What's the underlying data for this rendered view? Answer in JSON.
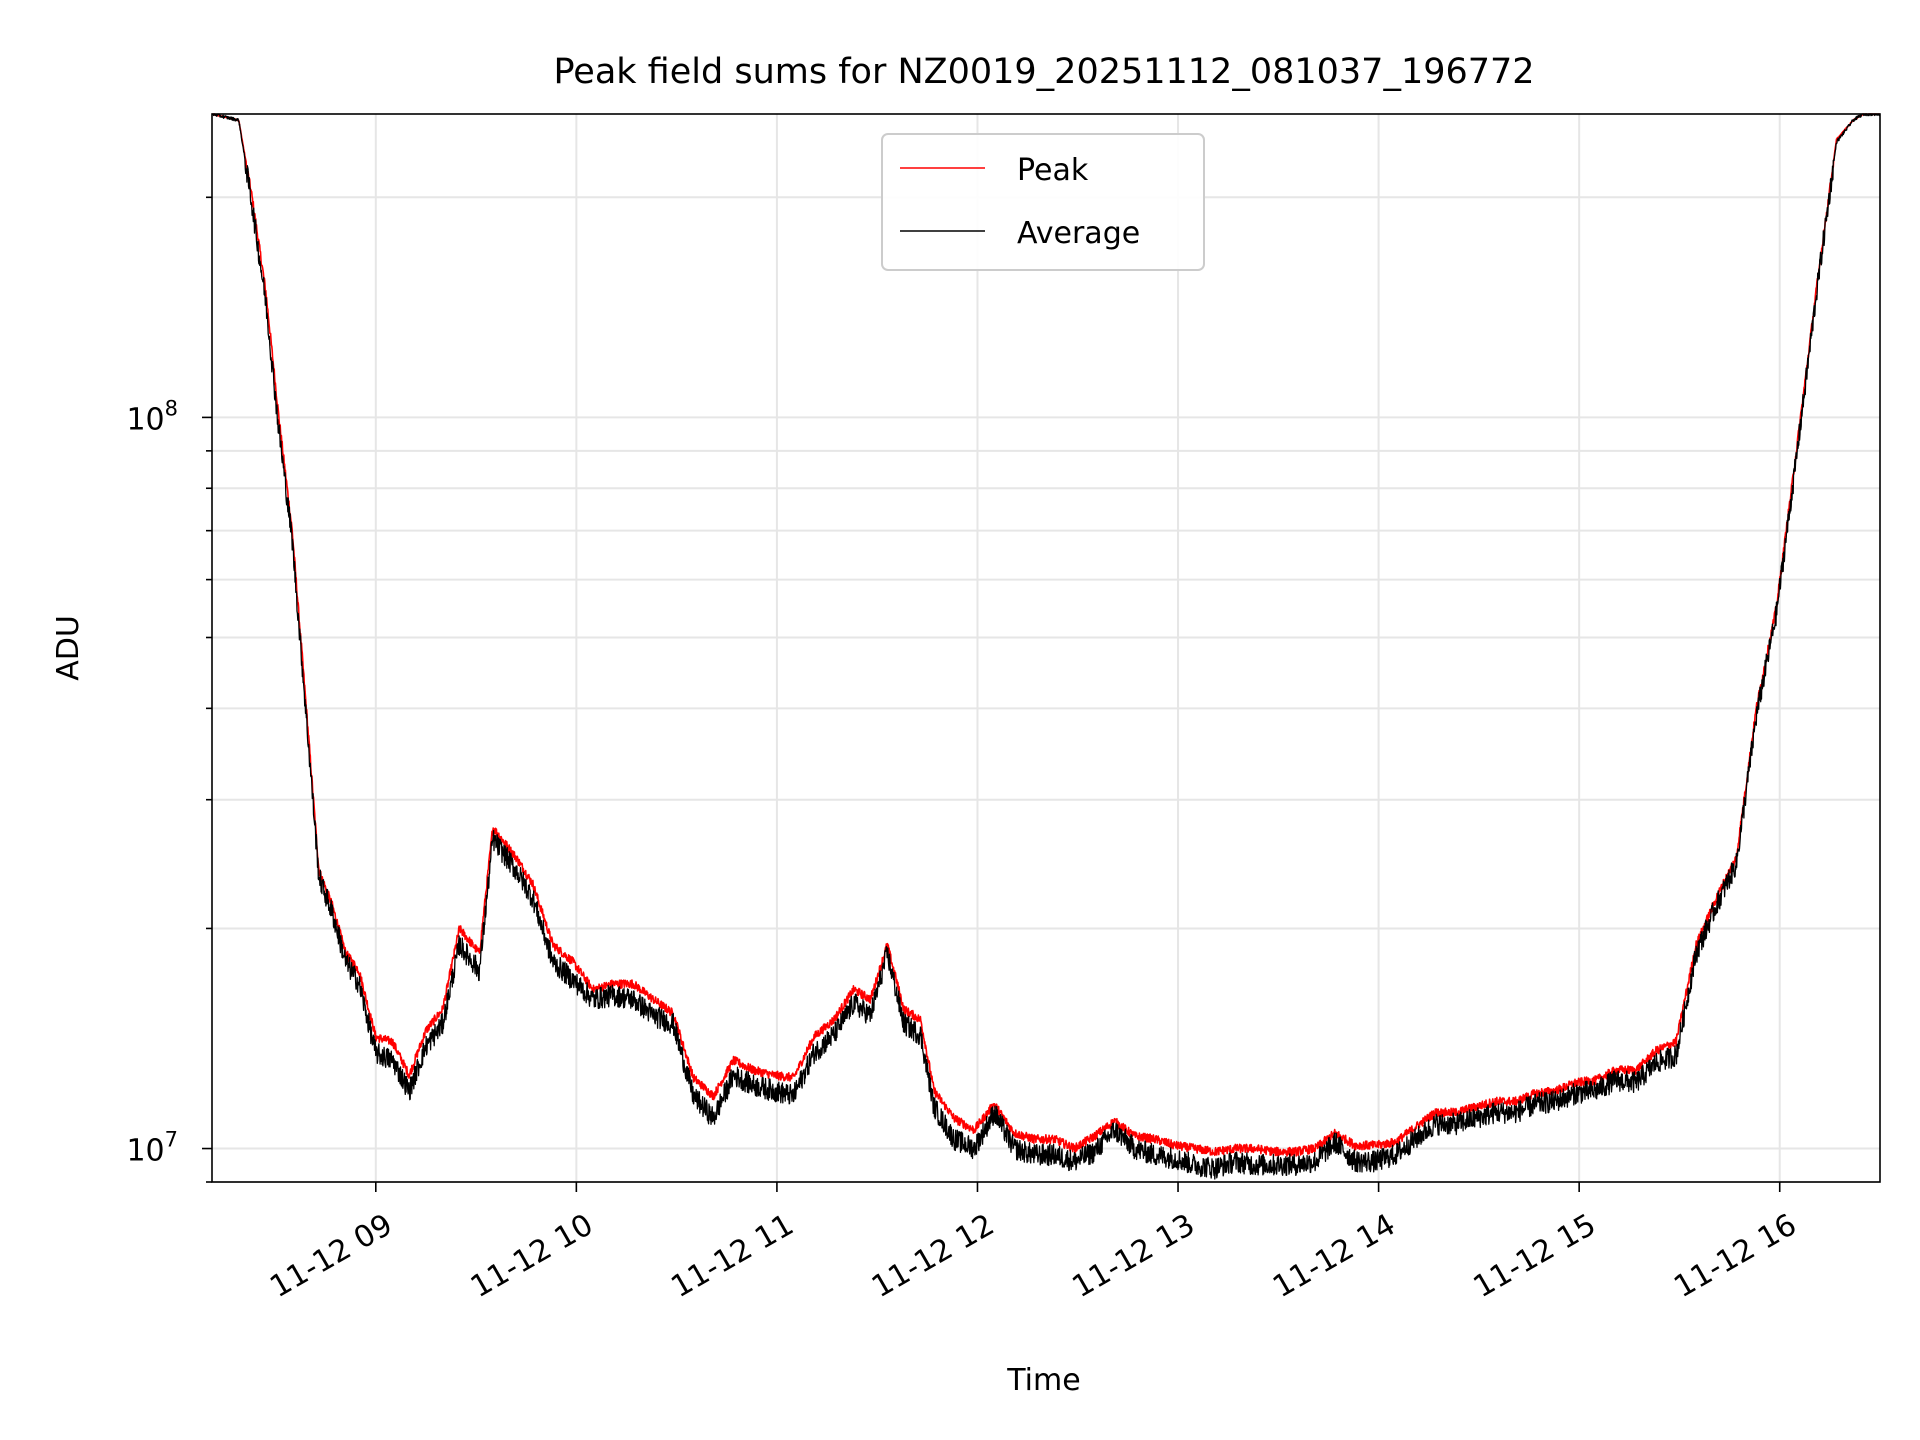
{
  "chart_data": {
    "type": "line",
    "title": "Peak field sums for NZ0019_20251112_081037_196772",
    "xlabel": "Time",
    "ylabel": "ADU",
    "x_range": [
      "2025-11-12 08:11",
      "2025-11-12 16:30"
    ],
    "y_range": [
      9000000,
      260000000
    ],
    "yscale": "log",
    "grid": true,
    "legend_position": "upper center",
    "x_ticks": [
      {
        "x": "2025-11-12 09:00",
        "label": "11-12 09"
      },
      {
        "x": "2025-11-12 10:00",
        "label": "11-12 10"
      },
      {
        "x": "2025-11-12 11:00",
        "label": "11-12 11"
      },
      {
        "x": "2025-11-12 12:00",
        "label": "11-12 12"
      },
      {
        "x": "2025-11-12 13:00",
        "label": "11-12 13"
      },
      {
        "x": "2025-11-12 14:00",
        "label": "11-12 14"
      },
      {
        "x": "2025-11-12 15:00",
        "label": "11-12 15"
      },
      {
        "x": "2025-11-12 16:00",
        "label": "11-12 16"
      }
    ],
    "y_ticks": [
      {
        "y": 10000000,
        "base": "10",
        "exp": "7"
      },
      {
        "y": 100000000,
        "base": "10",
        "exp": "8"
      }
    ],
    "series": [
      {
        "name": "Peak",
        "color": "#ff0000",
        "x": [
          "2025-11-12 08:11",
          "2025-11-12 08:19",
          "2025-11-12 08:23",
          "2025-11-12 08:27",
          "2025-11-12 08:31",
          "2025-11-12 08:35",
          "2025-11-12 08:40",
          "2025-11-12 08:43",
          "2025-11-12 08:47",
          "2025-11-12 08:51",
          "2025-11-12 08:55",
          "2025-11-12 09:00",
          "2025-11-12 09:05",
          "2025-11-12 09:10",
          "2025-11-12 09:15",
          "2025-11-12 09:20",
          "2025-11-12 09:25",
          "2025-11-12 09:31",
          "2025-11-12 09:35",
          "2025-11-12 09:42",
          "2025-11-12 09:47",
          "2025-11-12 09:53",
          "2025-11-12 09:59",
          "2025-11-12 10:05",
          "2025-11-12 10:11",
          "2025-11-12 10:17",
          "2025-11-12 10:23",
          "2025-11-12 10:29",
          "2025-11-12 10:35",
          "2025-11-12 10:41",
          "2025-11-12 10:47",
          "2025-11-12 10:53",
          "2025-11-12 10:59",
          "2025-11-12 11:05",
          "2025-11-12 11:11",
          "2025-11-12 11:17",
          "2025-11-12 11:23",
          "2025-11-12 11:28",
          "2025-11-12 11:33",
          "2025-11-12 11:38",
          "2025-11-12 11:43",
          "2025-11-12 11:47",
          "2025-11-12 11:53",
          "2025-11-12 11:59",
          "2025-11-12 12:05",
          "2025-11-12 12:11",
          "2025-11-12 12:17",
          "2025-11-12 12:23",
          "2025-11-12 12:29",
          "2025-11-12 12:35",
          "2025-11-12 12:41",
          "2025-11-12 12:47",
          "2025-11-12 12:53",
          "2025-11-12 12:59",
          "2025-11-12 13:05",
          "2025-11-12 13:11",
          "2025-11-12 13:17",
          "2025-11-12 13:23",
          "2025-11-12 13:29",
          "2025-11-12 13:35",
          "2025-11-12 13:41",
          "2025-11-12 13:47",
          "2025-11-12 13:53",
          "2025-11-12 13:59",
          "2025-11-12 14:05",
          "2025-11-12 14:11",
          "2025-11-12 14:17",
          "2025-11-12 14:23",
          "2025-11-12 14:29",
          "2025-11-12 14:35",
          "2025-11-12 14:41",
          "2025-11-12 14:47",
          "2025-11-12 14:53",
          "2025-11-12 14:59",
          "2025-11-12 15:05",
          "2025-11-12 15:11",
          "2025-11-12 15:17",
          "2025-11-12 15:23",
          "2025-11-12 15:29",
          "2025-11-12 15:35",
          "2025-11-12 15:41",
          "2025-11-12 15:47",
          "2025-11-12 15:53",
          "2025-11-12 15:59",
          "2025-11-12 16:05",
          "2025-11-12 16:11",
          "2025-11-12 16:17",
          "2025-11-12 16:22",
          "2025-11-12 16:25",
          "2025-11-12 16:30"
        ],
        "values": [
          260000000,
          255000000,
          200000000,
          150000000,
          100000000,
          70000000,
          36000000,
          24000000,
          21500000,
          18500000,
          17500000,
          14200000,
          14000000,
          12600000,
          14500000,
          15500000,
          20000000,
          18500000,
          27500000,
          25000000,
          23000000,
          19000000,
          18000000,
          16500000,
          16800000,
          16800000,
          16000000,
          15300000,
          12500000,
          11800000,
          13200000,
          12800000,
          12600000,
          12500000,
          14200000,
          15000000,
          16500000,
          16000000,
          19000000,
          15500000,
          15000000,
          12000000,
          11000000,
          10600000,
          11500000,
          10500000,
          10300000,
          10300000,
          10000000,
          10400000,
          10900000,
          10400000,
          10300000,
          10100000,
          10000000,
          9900000,
          10000000,
          10000000,
          9900000,
          9900000,
          10000000,
          10500000,
          10100000,
          10100000,
          10200000,
          10700000,
          11200000,
          11200000,
          11400000,
          11600000,
          11600000,
          11900000,
          12000000,
          12300000,
          12400000,
          12800000,
          12800000,
          13600000,
          14000000,
          19000000,
          22000000,
          25000000,
          40000000,
          55000000,
          90000000,
          150000000,
          240000000,
          255000000,
          260000000,
          260000000
        ]
      },
      {
        "name": "Average",
        "color": "#000000",
        "x": [
          "2025-11-12 08:11",
          "2025-11-12 08:19",
          "2025-11-12 08:23",
          "2025-11-12 08:27",
          "2025-11-12 08:31",
          "2025-11-12 08:35",
          "2025-11-12 08:40",
          "2025-11-12 08:43",
          "2025-11-12 08:47",
          "2025-11-12 08:51",
          "2025-11-12 08:55",
          "2025-11-12 09:00",
          "2025-11-12 09:05",
          "2025-11-12 09:10",
          "2025-11-12 09:15",
          "2025-11-12 09:20",
          "2025-11-12 09:25",
          "2025-11-12 09:31",
          "2025-11-12 09:35",
          "2025-11-12 09:42",
          "2025-11-12 09:47",
          "2025-11-12 09:53",
          "2025-11-12 09:59",
          "2025-11-12 10:05",
          "2025-11-12 10:11",
          "2025-11-12 10:17",
          "2025-11-12 10:23",
          "2025-11-12 10:29",
          "2025-11-12 10:35",
          "2025-11-12 10:41",
          "2025-11-12 10:47",
          "2025-11-12 10:53",
          "2025-11-12 10:59",
          "2025-11-12 11:05",
          "2025-11-12 11:11",
          "2025-11-12 11:17",
          "2025-11-12 11:23",
          "2025-11-12 11:28",
          "2025-11-12 11:33",
          "2025-11-12 11:38",
          "2025-11-12 11:43",
          "2025-11-12 11:47",
          "2025-11-12 11:53",
          "2025-11-12 11:59",
          "2025-11-12 12:05",
          "2025-11-12 12:11",
          "2025-11-12 12:17",
          "2025-11-12 12:23",
          "2025-11-12 12:29",
          "2025-11-12 12:35",
          "2025-11-12 12:41",
          "2025-11-12 12:47",
          "2025-11-12 12:53",
          "2025-11-12 12:59",
          "2025-11-12 13:05",
          "2025-11-12 13:11",
          "2025-11-12 13:17",
          "2025-11-12 13:23",
          "2025-11-12 13:29",
          "2025-11-12 13:35",
          "2025-11-12 13:41",
          "2025-11-12 13:47",
          "2025-11-12 13:53",
          "2025-11-12 13:59",
          "2025-11-12 14:05",
          "2025-11-12 14:11",
          "2025-11-12 14:17",
          "2025-11-12 14:23",
          "2025-11-12 14:29",
          "2025-11-12 14:35",
          "2025-11-12 14:41",
          "2025-11-12 14:47",
          "2025-11-12 14:53",
          "2025-11-12 14:59",
          "2025-11-12 15:05",
          "2025-11-12 15:11",
          "2025-11-12 15:17",
          "2025-11-12 15:23",
          "2025-11-12 15:29",
          "2025-11-12 15:35",
          "2025-11-12 15:41",
          "2025-11-12 15:47",
          "2025-11-12 15:53",
          "2025-11-12 15:59",
          "2025-11-12 16:05",
          "2025-11-12 16:11",
          "2025-11-12 16:17",
          "2025-11-12 16:22",
          "2025-11-12 16:25",
          "2025-11-12 16:30"
        ],
        "values": [
          260000000,
          255000000,
          195000000,
          145000000,
          96000000,
          68000000,
          35000000,
          23500000,
          21000000,
          18000000,
          16800000,
          13500000,
          13200000,
          12000000,
          13800000,
          14800000,
          19000000,
          17500000,
          26500000,
          24000000,
          22000000,
          18000000,
          17000000,
          16000000,
          16200000,
          16000000,
          15200000,
          14800000,
          11800000,
          11000000,
          12600000,
          12200000,
          12000000,
          11800000,
          13500000,
          14300000,
          15800000,
          15200000,
          18500000,
          14800000,
          14300000,
          11400000,
          10300000,
          10000000,
          11200000,
          10000000,
          9800000,
          9800000,
          9600000,
          9900000,
          10600000,
          10000000,
          9800000,
          9700000,
          9500000,
          9400000,
          9600000,
          9500000,
          9500000,
          9500000,
          9600000,
          10200000,
          9600000,
          9600000,
          9800000,
          10300000,
          10800000,
          10800000,
          11000000,
          11200000,
          11200000,
          11500000,
          11600000,
          11900000,
          12000000,
          12400000,
          12300000,
          13100000,
          13400000,
          18500000,
          21500000,
          24500000,
          39000000,
          54000000,
          88000000,
          148000000,
          238000000,
          255000000,
          260000000,
          260000000
        ]
      }
    ]
  }
}
